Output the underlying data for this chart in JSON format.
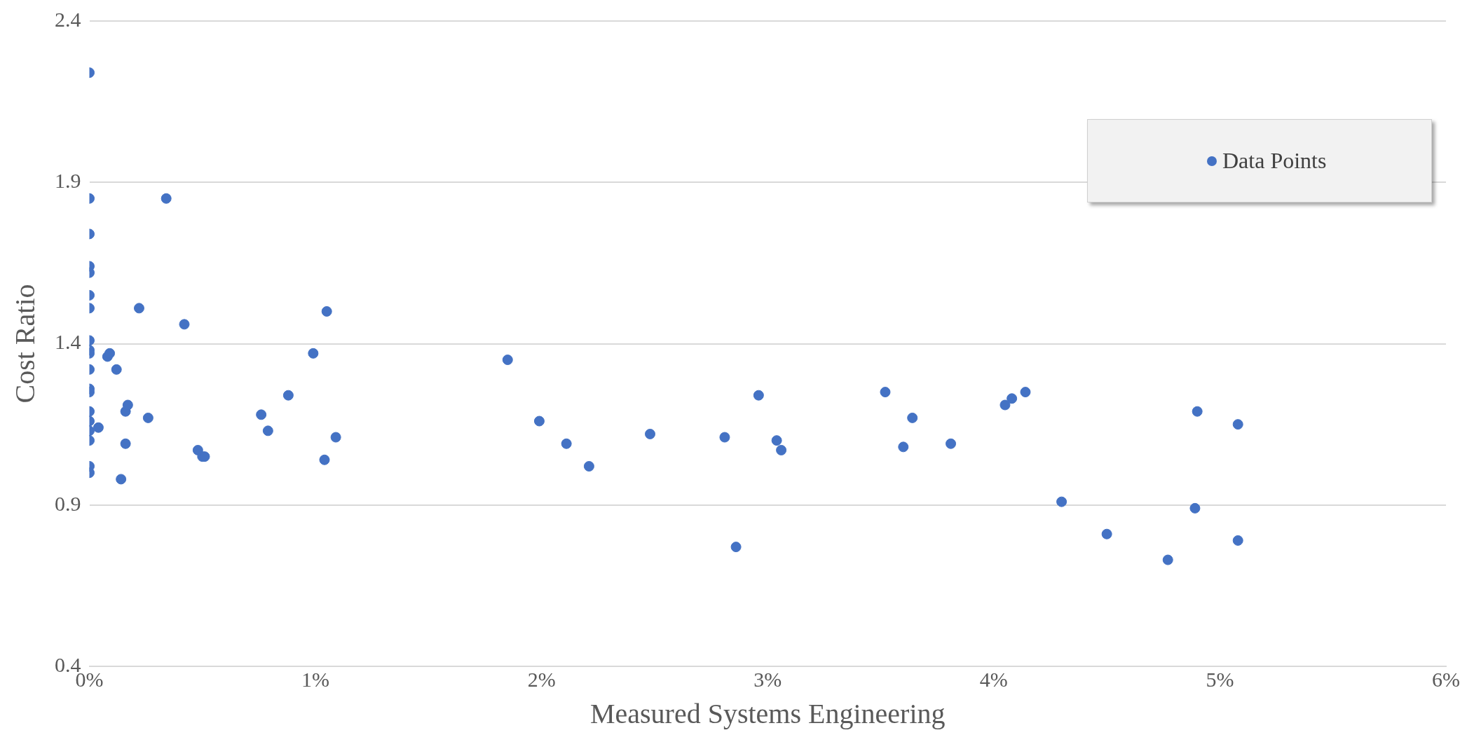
{
  "chart_data": {
    "type": "scatter",
    "xlabel": "Measured Systems Engineering",
    "ylabel": "Cost Ratio",
    "x": [
      0,
      0,
      0,
      0,
      0,
      0,
      0,
      0,
      0,
      0,
      0,
      0,
      0,
      0,
      0,
      0,
      0,
      0,
      0,
      0.04,
      0.08,
      0.09,
      0.12,
      0.14,
      0.16,
      0.16,
      0.17,
      0.22,
      0.26,
      0.34,
      0.42,
      0.48,
      0.5,
      0.51,
      0.76,
      0.79,
      0.88,
      0.99,
      1.04,
      1.05,
      1.09,
      1.85,
      1.99,
      2.11,
      2.21,
      2.48,
      2.81,
      2.86,
      2.96,
      3.04,
      3.06,
      3.52,
      3.6,
      3.64,
      3.81,
      4.05,
      4.08,
      4.14,
      4.3,
      4.5,
      4.77,
      4.89,
      4.9,
      5.08,
      5.08
    ],
    "series": [
      {
        "name": "Data Points",
        "color": "#4472c4",
        "values": [
          2.24,
          1.85,
          1.74,
          1.64,
          1.62,
          1.55,
          1.51,
          1.41,
          1.38,
          1.37,
          1.32,
          1.26,
          1.25,
          1.19,
          1.16,
          1.13,
          1.1,
          1.02,
          1,
          1.14,
          1.36,
          1.37,
          1.32,
          0.98,
          1.09,
          1.19,
          1.21,
          1.51,
          1.17,
          1.85,
          1.46,
          1.07,
          1.05,
          1.05,
          1.18,
          1.13,
          1.24,
          1.37,
          1.04,
          1.5,
          1.11,
          1.35,
          1.16,
          1.09,
          1.02,
          1.12,
          1.11,
          0.77,
          1.24,
          1.1,
          1.07,
          1.25,
          1.08,
          1.17,
          1.09,
          1.21,
          1.23,
          1.25,
          0.91,
          0.81,
          0.73,
          0.89,
          1.19,
          0.79,
          1.15
        ]
      }
    ],
    "xlim": [
      0,
      6
    ],
    "xticks": [
      {
        "value": 0,
        "label": "0%"
      },
      {
        "value": 1,
        "label": "1%"
      },
      {
        "value": 2,
        "label": "2%"
      },
      {
        "value": 3,
        "label": "3%"
      },
      {
        "value": 4,
        "label": "4%"
      },
      {
        "value": 5,
        "label": "5%"
      },
      {
        "value": 6,
        "label": "6%"
      }
    ],
    "ylim": [
      0.4,
      2.4
    ],
    "yticks": [
      0.4,
      0.9,
      1.4,
      1.9,
      2.4
    ],
    "grid": "y",
    "legend": "top right",
    "marker": "circle"
  }
}
